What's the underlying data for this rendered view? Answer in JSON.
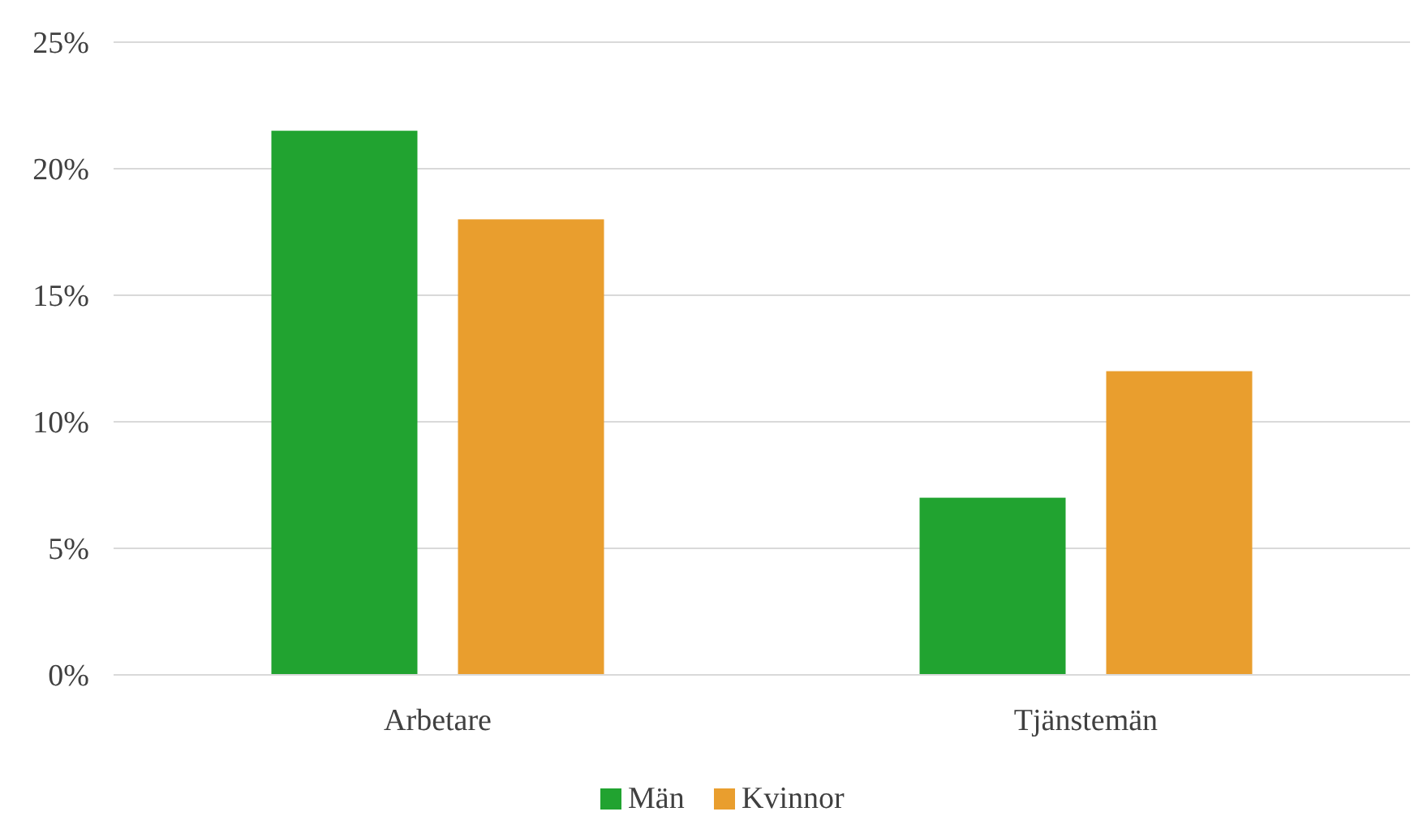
{
  "chart_data": {
    "type": "bar",
    "categories": [
      "Arbetare",
      "Tjänstemän"
    ],
    "series": [
      {
        "name": "Män",
        "color": "#21a330",
        "values": [
          21.5,
          7.0
        ]
      },
      {
        "name": "Kvinnor",
        "color": "#e99e2e",
        "values": [
          18.0,
          12.0
        ]
      }
    ],
    "ylim": [
      0,
      25
    ],
    "yticks": [
      {
        "value": 0,
        "label": "0%"
      },
      {
        "value": 5,
        "label": "5%"
      },
      {
        "value": 10,
        "label": "10%"
      },
      {
        "value": 15,
        "label": "15%"
      },
      {
        "value": 20,
        "label": "20%"
      },
      {
        "value": 25,
        "label": "25%"
      }
    ],
    "grid": "y",
    "legend": "bottom"
  }
}
